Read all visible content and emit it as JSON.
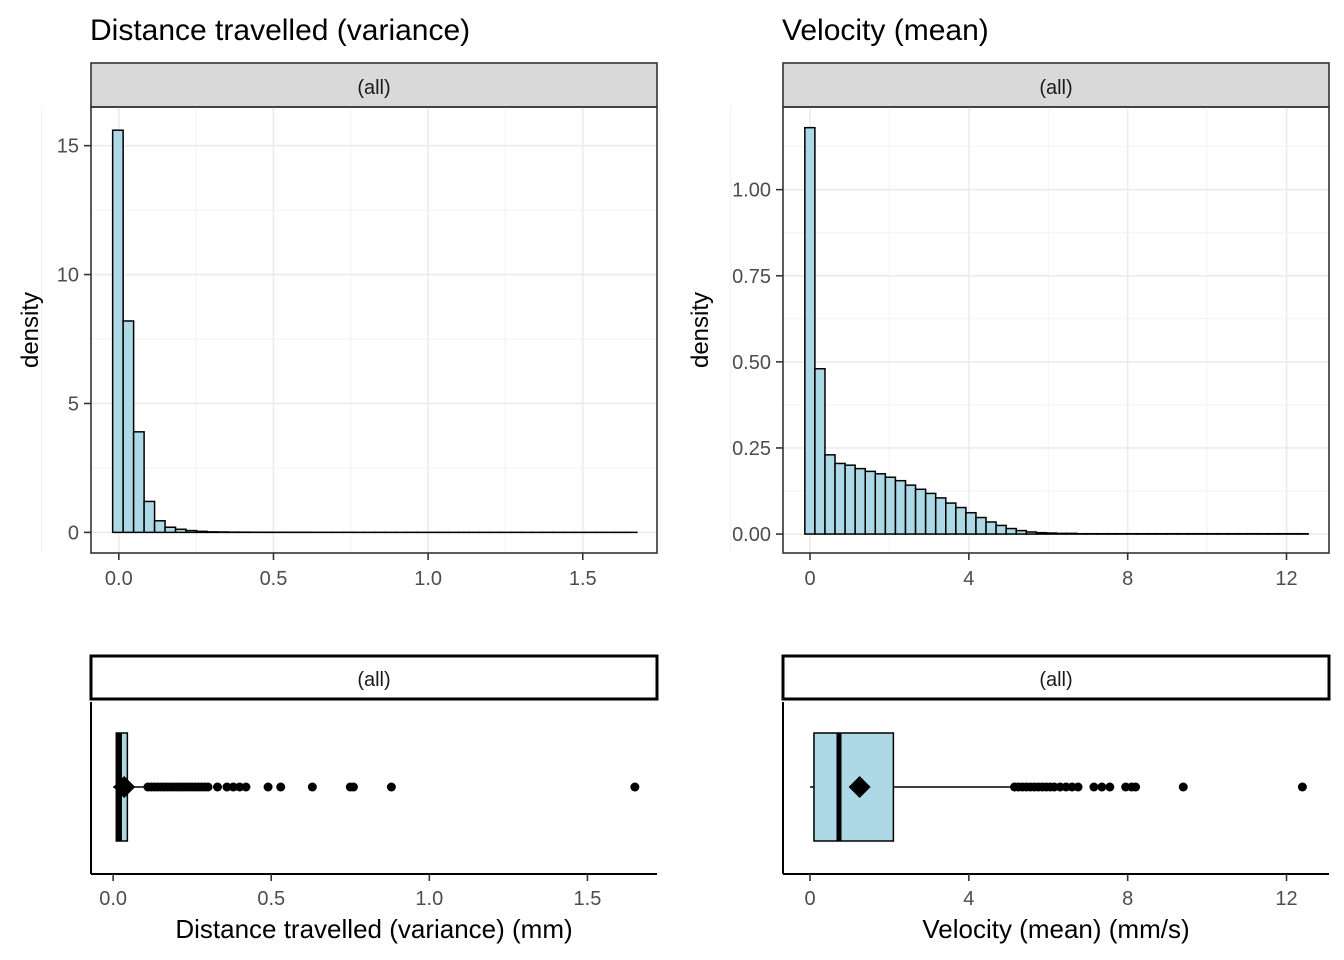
{
  "chart_data": [
    {
      "type": "bar",
      "title": "Distance travelled (variance)",
      "facet_label": "(all)",
      "xlabel": "",
      "ylabel": "density",
      "grid": true,
      "xlim": [
        -0.09,
        1.74
      ],
      "ylim": [
        -0.8,
        16.5
      ],
      "x_ticks": [
        0.0,
        0.5,
        1.0,
        1.5
      ],
      "x_tick_labels": [
        "0.0",
        "0.5",
        "1.0",
        "1.5"
      ],
      "y_ticks": [
        0,
        5,
        10,
        15
      ],
      "y_tick_labels": [
        "0",
        "5",
        "10",
        "15"
      ],
      "bin_start": -0.02,
      "bin_width": 0.0339,
      "values": [
        15.6,
        8.2,
        3.9,
        1.2,
        0.45,
        0.2,
        0.12,
        0.07,
        0.04,
        0.02,
        0.015,
        0.01,
        0.008,
        0.006,
        0.005,
        0.004,
        0.004,
        0.003,
        0.003,
        0.002,
        0.002,
        0.002,
        0.002,
        0.001,
        0.001,
        0.001,
        0.001,
        0.001,
        0.001,
        0.001,
        0.001,
        0.001,
        0.001,
        0.001,
        0.001,
        0.001,
        0.001,
        0.001,
        0.001,
        0.001,
        0.001,
        0.001,
        0.001,
        0.001,
        0.001,
        0.001,
        0.001,
        0.001,
        0.001,
        0.001
      ]
    },
    {
      "type": "bar",
      "title": "Velocity (mean)",
      "facet_label": "(all)",
      "xlabel": "",
      "ylabel": "density",
      "grid": true,
      "xlim": [
        -0.68,
        13.07
      ],
      "ylim": [
        -0.055,
        1.24
      ],
      "x_ticks": [
        0,
        4,
        8,
        12
      ],
      "x_tick_labels": [
        "0",
        "4",
        "8",
        "12"
      ],
      "y_ticks": [
        0.0,
        0.25,
        0.5,
        0.75,
        1.0
      ],
      "y_tick_labels": [
        "0.00",
        "0.25",
        "0.50",
        "0.75",
        "1.00"
      ],
      "bin_start": -0.13,
      "bin_width": 0.2535,
      "values": [
        1.18,
        0.48,
        0.23,
        0.205,
        0.2,
        0.19,
        0.182,
        0.175,
        0.165,
        0.155,
        0.142,
        0.13,
        0.118,
        0.105,
        0.09,
        0.077,
        0.062,
        0.048,
        0.035,
        0.025,
        0.016,
        0.01,
        0.006,
        0.004,
        0.003,
        0.002,
        0.002,
        0.001,
        0.001,
        0.001,
        0.001,
        0.001,
        0.001,
        0.001,
        0.001,
        0.001,
        0.001,
        0.001,
        0.001,
        0.001,
        0.001,
        0.001,
        0.001,
        0.001,
        0.001,
        0.001,
        0.001,
        0.001,
        0.001,
        0.001
      ]
    },
    {
      "type": "boxplot",
      "facet_label": "(all)",
      "xlabel": "Distance travelled (variance) (mm)",
      "xlim": [
        -0.07,
        1.72
      ],
      "x_ticks": [
        0.0,
        0.5,
        1.0,
        1.5
      ],
      "x_tick_labels": [
        "0.0",
        "0.5",
        "1.0",
        "1.5"
      ],
      "whisker_low": 0.0,
      "q1": 0.01,
      "median": 0.02,
      "q3": 0.045,
      "whisker_high": 0.1,
      "mean": 0.035,
      "outliers": [
        0.11,
        0.12,
        0.13,
        0.14,
        0.15,
        0.16,
        0.17,
        0.18,
        0.19,
        0.2,
        0.21,
        0.22,
        0.23,
        0.24,
        0.25,
        0.26,
        0.27,
        0.28,
        0.29,
        0.3,
        0.33,
        0.36,
        0.38,
        0.4,
        0.42,
        0.49,
        0.53,
        0.63,
        0.75,
        0.76,
        0.88,
        1.65
      ]
    },
    {
      "type": "boxplot",
      "facet_label": "(all)",
      "xlabel": "Velocity (mean)  (mm/s)",
      "xlim": [
        -0.68,
        13.07
      ],
      "x_ticks": [
        0,
        4,
        8,
        12
      ],
      "x_tick_labels": [
        "0",
        "4",
        "8",
        "12"
      ],
      "whisker_low": 0.0,
      "q1": 0.1,
      "median": 0.73,
      "q3": 2.1,
      "whisker_high": 5.1,
      "mean": 1.25,
      "outliers": [
        5.15,
        5.25,
        5.35,
        5.45,
        5.55,
        5.65,
        5.75,
        5.85,
        5.95,
        6.05,
        6.15,
        6.3,
        6.45,
        6.6,
        6.75,
        7.15,
        7.35,
        7.55,
        7.95,
        8.1,
        8.2,
        9.4,
        12.4
      ]
    }
  ]
}
